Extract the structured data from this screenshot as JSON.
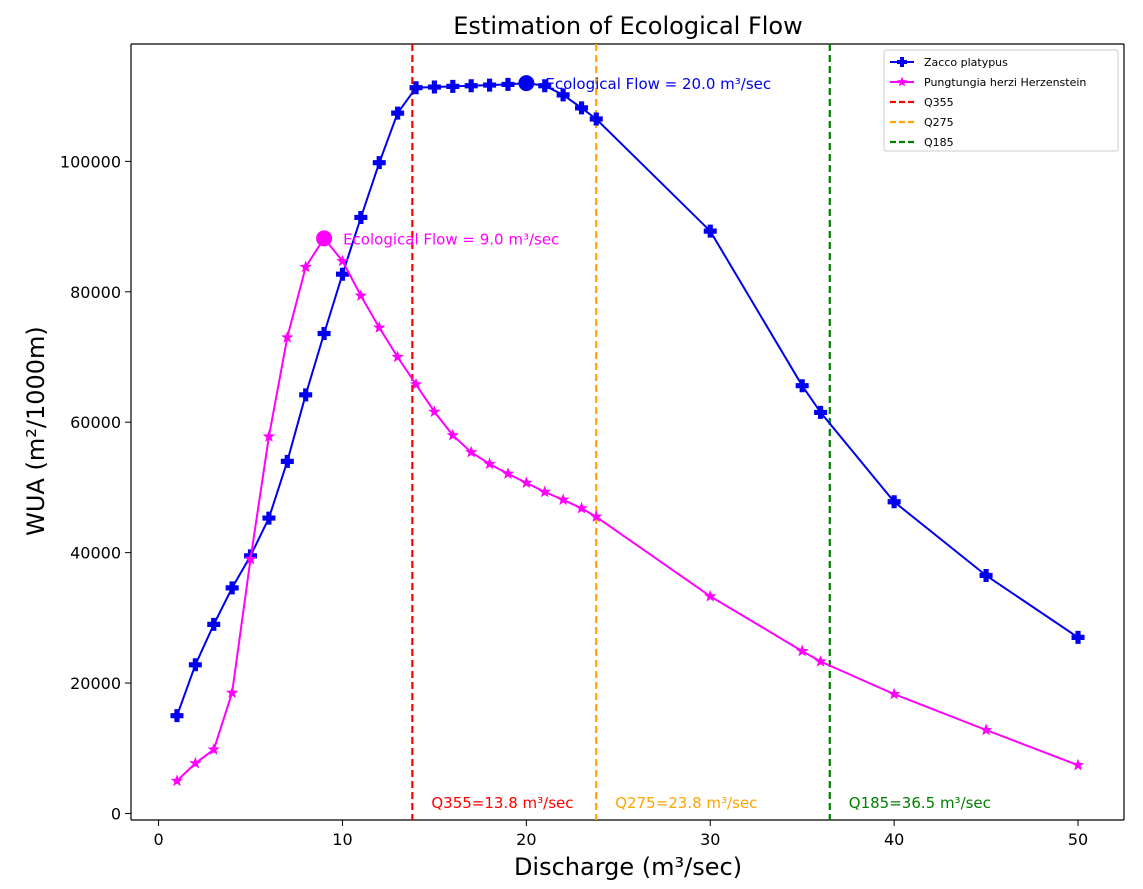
{
  "chart_data": {
    "type": "line",
    "title": "Estimation of Ecological Flow",
    "xlabel": "Discharge (m³/sec)",
    "ylabel": "WUA (m²/1000m)",
    "xlim": [
      -1.5,
      52.5
    ],
    "ylim": [
      -1000,
      118000
    ],
    "xticks": [
      0,
      10,
      20,
      30,
      40,
      50
    ],
    "yticks": [
      0,
      20000,
      40000,
      60000,
      80000,
      100000
    ],
    "grid": false,
    "legend_position": "top-right",
    "series": [
      {
        "name": "Zacco platypus",
        "color": "#0000ee",
        "marker": "plus",
        "x": [
          1,
          2,
          3,
          4,
          5,
          6,
          7,
          8,
          9,
          10,
          11,
          12,
          13,
          14,
          15,
          16,
          17,
          18,
          19,
          20,
          21,
          22,
          23,
          23.8,
          30,
          35,
          36,
          40,
          45,
          50
        ],
        "y": [
          15000,
          22800,
          29000,
          34600,
          39500,
          45300,
          54000,
          64200,
          73600,
          82700,
          91400,
          99800,
          107400,
          111300,
          111400,
          111500,
          111600,
          111700,
          111800,
          112000,
          111600,
          110200,
          108200,
          106500,
          89300,
          65600,
          61500,
          47800,
          36500,
          27000
        ]
      },
      {
        "name": "Pungtungia herzi Herzenstein",
        "color": "#ff00ff",
        "marker": "star",
        "x": [
          1,
          2,
          3,
          4,
          5,
          6,
          7,
          8,
          9,
          10,
          11,
          12,
          13,
          14,
          15,
          16,
          17,
          18,
          19,
          20,
          21,
          22,
          23,
          23.8,
          30,
          35,
          36,
          40,
          45,
          50
        ],
        "y": [
          5000,
          7700,
          9800,
          18500,
          39000,
          57800,
          73000,
          83800,
          88200,
          84700,
          79400,
          74500,
          70000,
          65800,
          61600,
          58000,
          55400,
          53600,
          52100,
          50700,
          49300,
          48100,
          46800,
          45500,
          33300,
          24900,
          23300,
          18300,
          12800,
          7400
        ]
      }
    ],
    "peaks": [
      {
        "series": "Zacco platypus",
        "x": 20,
        "y": 112000,
        "color": "#0000ee",
        "label": "Ecological Flow = 20.0 m³/sec"
      },
      {
        "series": "Pungtungia herzi Herzenstein",
        "x": 9,
        "y": 88200,
        "color": "#ff00ff",
        "label": "Ecological Flow = 9.0 m³/sec"
      }
    ],
    "vlines": [
      {
        "name": "Q355",
        "x": 13.8,
        "color": "#ff0000",
        "label": "Q355=13.8 m³/sec"
      },
      {
        "name": "Q275",
        "x": 23.8,
        "color": "#ffa500",
        "label": "Q275=23.8 m³/sec"
      },
      {
        "name": "Q185",
        "x": 36.5,
        "color": "#008000",
        "label": "Q185=36.5 m³/sec"
      }
    ]
  }
}
